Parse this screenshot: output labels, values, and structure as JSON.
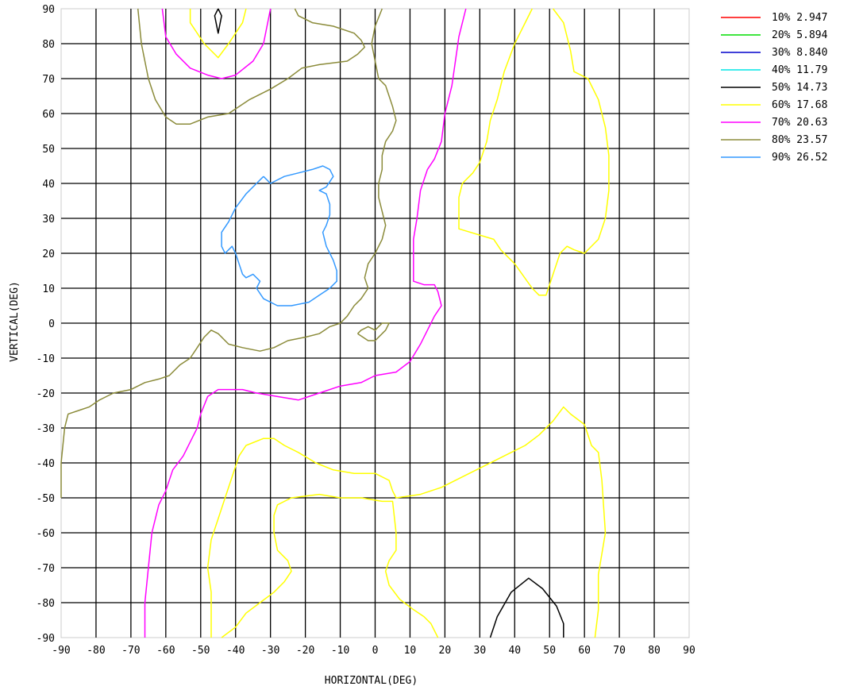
{
  "chart_data": {
    "type": "line",
    "subtype": "contour",
    "title": "",
    "xlabel": "HORIZONTAL(DEG)",
    "ylabel": "VERTICAL(DEG)",
    "xlim": [
      -90,
      90
    ],
    "ylim": [
      -90,
      90
    ],
    "xticks": [
      -90,
      -80,
      -70,
      -60,
      -50,
      -40,
      -30,
      -20,
      -10,
      0,
      10,
      20,
      30,
      40,
      50,
      60,
      70,
      80,
      90
    ],
    "yticks": [
      -90,
      -80,
      -70,
      -60,
      -50,
      -40,
      -30,
      -20,
      -10,
      0,
      10,
      20,
      30,
      40,
      50,
      60,
      70,
      80,
      90
    ],
    "grid": true,
    "grid_color": "#000000",
    "legend_position": "top-right",
    "legend": [
      {
        "label": "10% 2.947",
        "color": "#ff0000"
      },
      {
        "label": "20% 5.894",
        "color": "#00dd00"
      },
      {
        "label": "30% 8.840",
        "color": "#0000cc"
      },
      {
        "label": "40% 11.79",
        "color": "#00e5e5"
      },
      {
        "label": "50% 14.73",
        "color": "#000000"
      },
      {
        "label": "60% 17.68",
        "color": "#ffff00"
      },
      {
        "label": "70% 20.63",
        "color": "#ff00ff"
      },
      {
        "label": "80% 23.57",
        "color": "#8b8b3a"
      },
      {
        "label": "90% 26.52",
        "color": "#3399ff"
      }
    ],
    "series": [
      {
        "level": "50%",
        "color": "#000000",
        "points": [
          [
            -45,
            90
          ],
          [
            -46,
            88
          ],
          [
            -45,
            83
          ],
          [
            -44,
            88
          ],
          [
            -45,
            90
          ]
        ]
      },
      {
        "level": "50%",
        "color": "#000000",
        "points": [
          [
            33,
            -90
          ],
          [
            35,
            -84
          ],
          [
            39,
            -77
          ],
          [
            44,
            -73
          ],
          [
            48,
            -76
          ],
          [
            52,
            -81
          ],
          [
            54,
            -86
          ],
          [
            54,
            -90
          ]
        ]
      },
      {
        "level": "60%",
        "color": "#ffff00",
        "points": [
          [
            -53,
            90
          ],
          [
            -53,
            86
          ],
          [
            -49,
            80
          ],
          [
            -45,
            76
          ],
          [
            -42,
            80
          ],
          [
            -38,
            86
          ],
          [
            -37,
            90
          ]
        ]
      },
      {
        "level": "60%",
        "color": "#ffff00",
        "points": [
          [
            51,
            90
          ],
          [
            54,
            86
          ],
          [
            56,
            78
          ],
          [
            57,
            72
          ],
          [
            61,
            70
          ],
          [
            64,
            64
          ],
          [
            66,
            56
          ],
          [
            67,
            48
          ],
          [
            67,
            38
          ],
          [
            66,
            30
          ],
          [
            64,
            24
          ],
          [
            60,
            20
          ],
          [
            57,
            21
          ],
          [
            55,
            22
          ],
          [
            53,
            20
          ],
          [
            49,
            8
          ],
          [
            47,
            8
          ],
          [
            45,
            10
          ],
          [
            40,
            17
          ],
          [
            36,
            21
          ],
          [
            34,
            24
          ],
          [
            24,
            27
          ],
          [
            24,
            36
          ],
          [
            25,
            40
          ],
          [
            28,
            43
          ],
          [
            30,
            46
          ],
          [
            32,
            52
          ],
          [
            33,
            58
          ],
          [
            35,
            64
          ],
          [
            37,
            72
          ],
          [
            40,
            80
          ],
          [
            42,
            84
          ],
          [
            45,
            90
          ]
        ]
      },
      {
        "level": "60%",
        "color": "#ffff00",
        "points": [
          [
            -47,
            -90
          ],
          [
            -47,
            -84
          ],
          [
            -47,
            -77
          ],
          [
            -48,
            -70
          ],
          [
            -47,
            -62
          ],
          [
            -45,
            -56
          ],
          [
            -43,
            -50
          ],
          [
            -41,
            -44
          ],
          [
            -39,
            -38
          ],
          [
            -37,
            -35
          ],
          [
            -32,
            -33
          ],
          [
            -29,
            -33
          ],
          [
            -26,
            -35
          ],
          [
            -22,
            -37
          ],
          [
            -17,
            -40
          ],
          [
            -12,
            -42
          ],
          [
            -6,
            -43
          ],
          [
            0,
            -43
          ],
          [
            4,
            -45
          ],
          [
            5,
            -48
          ],
          [
            6,
            -50
          ],
          [
            13,
            -49
          ],
          [
            19,
            -47
          ],
          [
            25,
            -44
          ],
          [
            31,
            -41
          ],
          [
            37,
            -38
          ],
          [
            43,
            -35
          ],
          [
            47,
            -32
          ],
          [
            51,
            -28
          ],
          [
            54,
            -24
          ],
          [
            56,
            -26
          ],
          [
            60,
            -29
          ],
          [
            62,
            -35
          ],
          [
            64,
            -37
          ],
          [
            65,
            -45
          ],
          [
            66,
            -60
          ],
          [
            64,
            -72
          ],
          [
            64,
            -82
          ],
          [
            63,
            -90
          ]
        ]
      },
      {
        "level": "60%",
        "color": "#ffff00",
        "points": [
          [
            -44,
            -90
          ],
          [
            -40,
            -87
          ],
          [
            -37,
            -83
          ],
          [
            -33,
            -80
          ],
          [
            -29,
            -77
          ],
          [
            -26,
            -74
          ],
          [
            -24,
            -71
          ],
          [
            -25,
            -68
          ],
          [
            -28,
            -65
          ],
          [
            -29,
            -60
          ],
          [
            -29,
            -55
          ],
          [
            -28,
            -52
          ],
          [
            -24,
            -50
          ],
          [
            -16,
            -49
          ],
          [
            -10,
            -50
          ],
          [
            -4,
            -50
          ],
          [
            2,
            -51
          ],
          [
            5,
            -51
          ],
          [
            6,
            -60
          ],
          [
            6,
            -65
          ],
          [
            4,
            -68
          ],
          [
            3,
            -71
          ],
          [
            4,
            -75
          ],
          [
            7,
            -79
          ],
          [
            11,
            -82
          ],
          [
            14,
            -84
          ],
          [
            16,
            -86
          ],
          [
            18,
            -90
          ]
        ]
      },
      {
        "level": "70%",
        "color": "#ff00ff",
        "points": [
          [
            -61,
            90
          ],
          [
            -60,
            82
          ],
          [
            -57,
            77
          ],
          [
            -53,
            73
          ],
          [
            -48,
            71
          ],
          [
            -44,
            70
          ],
          [
            -40,
            71
          ],
          [
            -35,
            75
          ],
          [
            -32,
            80
          ],
          [
            -31,
            85
          ],
          [
            -30,
            90
          ]
        ]
      },
      {
        "level": "70%",
        "color": "#ff00ff",
        "points": [
          [
            26,
            90
          ],
          [
            24,
            82
          ],
          [
            23,
            75
          ],
          [
            22,
            68
          ],
          [
            20,
            60
          ],
          [
            19,
            52
          ],
          [
            17,
            47
          ],
          [
            15,
            44
          ],
          [
            13,
            38
          ],
          [
            12,
            30
          ],
          [
            11,
            24
          ],
          [
            11,
            12
          ],
          [
            14,
            11
          ],
          [
            17,
            11
          ],
          [
            18,
            9
          ],
          [
            19,
            5
          ],
          [
            17,
            2
          ],
          [
            15,
            -2
          ],
          [
            13,
            -6
          ],
          [
            10,
            -11
          ],
          [
            6,
            -14
          ],
          [
            0,
            -15
          ],
          [
            -4,
            -17
          ],
          [
            -10,
            -18
          ],
          [
            -16,
            -20
          ],
          [
            -22,
            -22
          ],
          [
            -28,
            -21
          ],
          [
            -34,
            -20
          ],
          [
            -38,
            -19
          ],
          [
            -45,
            -19
          ],
          [
            -48,
            -21
          ],
          [
            -50,
            -26
          ],
          [
            -51,
            -30
          ],
          [
            -53,
            -34
          ],
          [
            -55,
            -38
          ],
          [
            -58,
            -42
          ],
          [
            -60,
            -48
          ],
          [
            -62,
            -52
          ],
          [
            -64,
            -60
          ],
          [
            -65,
            -70
          ],
          [
            -66,
            -80
          ],
          [
            -66,
            -90
          ]
        ]
      },
      {
        "level": "80%",
        "color": "#8b8b3a",
        "points": [
          [
            -68,
            90
          ],
          [
            -67,
            80
          ],
          [
            -65,
            70
          ],
          [
            -63,
            64
          ],
          [
            -60,
            59
          ],
          [
            -57,
            57
          ],
          [
            -53,
            57
          ],
          [
            -48,
            59
          ],
          [
            -42,
            60
          ],
          [
            -36,
            64
          ],
          [
            -30,
            67
          ],
          [
            -25,
            70
          ],
          [
            -21,
            73
          ],
          [
            -16,
            74
          ],
          [
            -8,
            75
          ],
          [
            -5,
            77
          ],
          [
            -3,
            79
          ],
          [
            -4,
            81
          ],
          [
            -6,
            83
          ],
          [
            -12,
            85
          ],
          [
            -18,
            86
          ],
          [
            -22,
            88
          ],
          [
            -23,
            90
          ]
        ]
      },
      {
        "level": "80%",
        "color": "#8b8b3a",
        "points": [
          [
            2,
            90
          ],
          [
            0,
            85
          ],
          [
            -1,
            80
          ],
          [
            0,
            75
          ],
          [
            1,
            70
          ],
          [
            3,
            68
          ],
          [
            4,
            65
          ],
          [
            5,
            62
          ],
          [
            6,
            58
          ],
          [
            5,
            55
          ],
          [
            3,
            52
          ],
          [
            2,
            48
          ],
          [
            2,
            44
          ],
          [
            1,
            40
          ],
          [
            1,
            36
          ],
          [
            2,
            32
          ],
          [
            3,
            28
          ],
          [
            2,
            24
          ],
          [
            0,
            20
          ],
          [
            -2,
            17
          ],
          [
            -3,
            13
          ],
          [
            -2,
            10
          ],
          [
            -4,
            7
          ],
          [
            -6,
            5
          ],
          [
            -8,
            2
          ],
          [
            -10,
            0
          ],
          [
            -13,
            -1
          ],
          [
            -16,
            -3
          ],
          [
            -20,
            -4
          ],
          [
            -25,
            -5
          ],
          [
            -29,
            -7
          ],
          [
            -33,
            -8
          ],
          [
            -38,
            -7
          ],
          [
            -42,
            -6
          ],
          [
            -45,
            -3
          ],
          [
            -47,
            -2
          ],
          [
            -49,
            -4
          ],
          [
            -51,
            -7
          ],
          [
            -53,
            -10
          ],
          [
            -56,
            -12
          ],
          [
            -59,
            -15
          ],
          [
            -62,
            -16
          ],
          [
            -66,
            -17
          ],
          [
            -70,
            -19
          ],
          [
            -75,
            -20
          ],
          [
            -79,
            -22
          ],
          [
            -82,
            -24
          ],
          [
            -85,
            -25
          ],
          [
            -88,
            -26
          ],
          [
            -89,
            -30
          ],
          [
            -90,
            -40
          ],
          [
            -90,
            -50
          ]
        ]
      },
      {
        "level": "80%",
        "color": "#8b8b3a",
        "points": [
          [
            -5,
            -3
          ],
          [
            -2,
            -5
          ],
          [
            0,
            -5
          ],
          [
            3,
            -2
          ],
          [
            4,
            0
          ],
          [
            2,
            0
          ],
          [
            0,
            -2
          ],
          [
            -2,
            -1
          ],
          [
            -4,
            -2
          ],
          [
            -5,
            -3
          ]
        ]
      },
      {
        "level": "90%",
        "color": "#3399ff",
        "points": [
          [
            -32,
            42
          ],
          [
            -30,
            40
          ],
          [
            -26,
            42
          ],
          [
            -22,
            43
          ],
          [
            -18,
            44
          ],
          [
            -15,
            45
          ],
          [
            -13,
            44
          ],
          [
            -12,
            42
          ],
          [
            -14,
            39
          ],
          [
            -16,
            38
          ],
          [
            -14,
            37
          ],
          [
            -13,
            34
          ],
          [
            -13,
            31
          ],
          [
            -14,
            28
          ],
          [
            -15,
            26
          ],
          [
            -14,
            22
          ],
          [
            -13,
            20
          ],
          [
            -12,
            18
          ],
          [
            -11,
            15
          ],
          [
            -11,
            12
          ],
          [
            -13,
            10
          ],
          [
            -16,
            8
          ],
          [
            -19,
            6
          ],
          [
            -24,
            5
          ],
          [
            -28,
            5
          ],
          [
            -30,
            6
          ],
          [
            -32,
            7
          ],
          [
            -34,
            10
          ],
          [
            -33,
            12
          ],
          [
            -35,
            14
          ],
          [
            -37,
            13
          ],
          [
            -38,
            14
          ],
          [
            -39,
            17
          ],
          [
            -40,
            20
          ],
          [
            -41,
            22
          ],
          [
            -43,
            20
          ],
          [
            -44,
            22
          ],
          [
            -44,
            26
          ],
          [
            -42,
            29
          ],
          [
            -40,
            33
          ],
          [
            -37,
            37
          ],
          [
            -34,
            40
          ],
          [
            -32,
            42
          ]
        ]
      }
    ]
  }
}
